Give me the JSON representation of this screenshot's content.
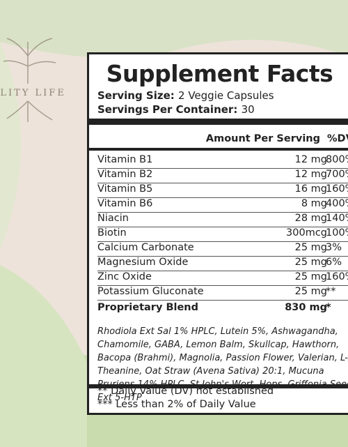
{
  "logo": "ALITY LIFE",
  "panel": {
    "title": "Supplement Facts",
    "serving_size_label": "Serving Size:",
    "serving_size": "2 Veggie Capsules",
    "servings_label": "Servings Per Container:",
    "servings": "30",
    "header_amount": "Amount Per Serving",
    "header_dv": "%DV",
    "rows": [
      [
        "Vitamin B1",
        "12 mg",
        "800%"
      ],
      [
        "Vitamin B2",
        "12 mg",
        "700%"
      ],
      [
        "Vitamin B5",
        "16 mg",
        "160%"
      ],
      [
        "Vitamin B6",
        "8 mg",
        "400%"
      ],
      [
        "Niacin",
        "28 mg",
        "140%"
      ],
      [
        "Biotin",
        "300mcg",
        "100%"
      ],
      [
        "Calcium Carbonate",
        "25 mg",
        "3%"
      ],
      [
        "Magnesium Oxide",
        "25 mg",
        "6%"
      ],
      [
        "Zinc Oxide",
        "25 mg",
        "160%"
      ],
      [
        "Potassium Gluconate",
        "25 mg",
        "**"
      ]
    ],
    "blend": [
      "Proprietary Blend",
      "830 mg",
      "*"
    ],
    "blend_ingredients": "Rhodiola Ext Sal 1% HPLC, Lutein 5%,  Ashwagandha, Chamomile, GABA, Lemon Balm, Skullcap, Hawthorn, Bacopa (Brahmi), Magnolia, Passion Flower, Valerian, L-Theanine, Oat Straw (Avena Sativa) 20:1, Mucuna Pruriens 14% HPLC, St John's Wort, Hops, Griffonia Seed Ext 5-HTP",
    "footnotes": [
      "** Daily Value (DV) not established",
      "*** Less than 2% of Daily Value"
    ]
  }
}
